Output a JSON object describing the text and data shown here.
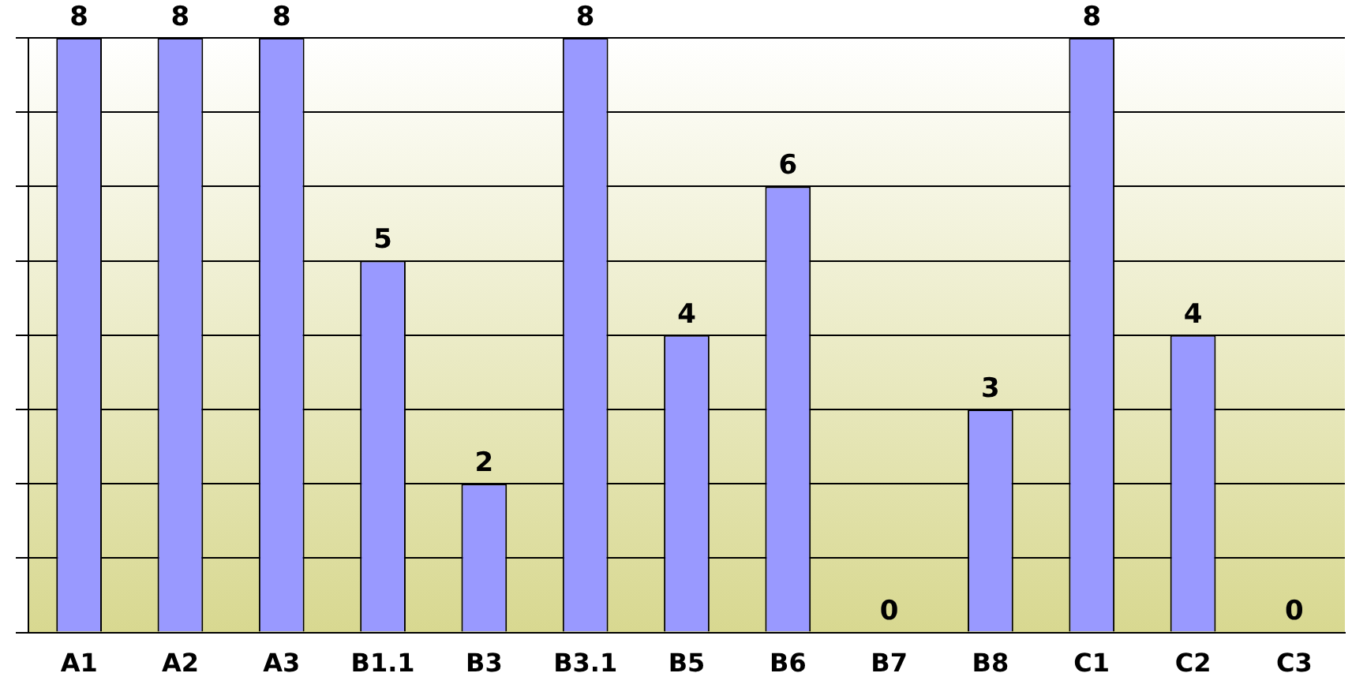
{
  "chart_data": {
    "type": "bar",
    "categories": [
      "A1",
      "A2",
      "A3",
      "B1.1",
      "B3",
      "B3.1",
      "B5",
      "B6",
      "B7",
      "B8",
      "C1",
      "C2",
      "C3"
    ],
    "values": [
      8,
      8,
      8,
      5,
      2,
      8,
      4,
      6,
      0,
      3,
      8,
      4,
      0
    ],
    "color": "#9999ff",
    "ylim": [
      0,
      8
    ],
    "yticks": [
      {
        "value": 0,
        "label": null
      },
      {
        "value": 1,
        "label": null
      },
      {
        "value": 2,
        "label": null
      },
      {
        "value": 3,
        "label": null
      },
      {
        "value": 4,
        "label": null
      },
      {
        "value": 5,
        "label": null
      },
      {
        "value": 6,
        "label": null
      },
      {
        "value": 7,
        "label": null
      },
      {
        "value": 8,
        "label": null
      }
    ],
    "grid": "y",
    "data_labels": true,
    "legend": false
  }
}
